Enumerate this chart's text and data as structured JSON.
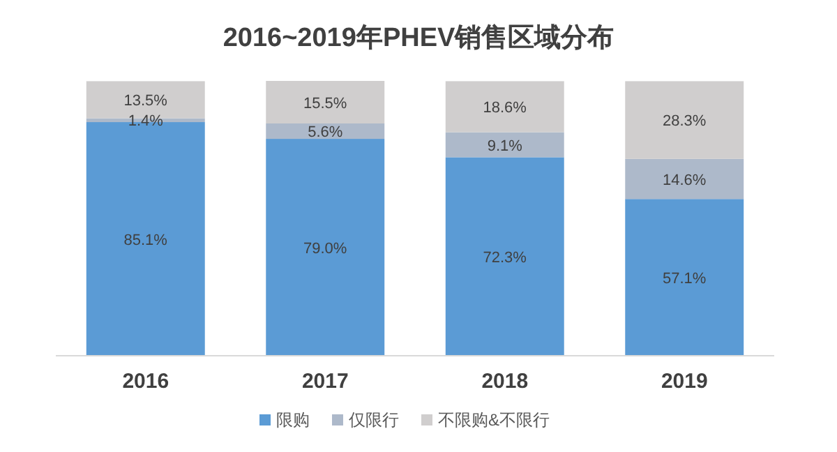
{
  "chart_data": {
    "type": "bar",
    "title": "2016~2019年PHEV销售区域分布",
    "categories": [
      "2016",
      "2017",
      "2018",
      "2019"
    ],
    "stacked": true,
    "data_labels": true,
    "legend": "bottom",
    "series": [
      {
        "name": "限购",
        "color": "#5b9bd5",
        "values": [
          85.1,
          79.0,
          72.3,
          57.1
        ],
        "value_labels": [
          "85.1%",
          "79.0%",
          "72.3%",
          "57.1%"
        ]
      },
      {
        "name": "仅限行",
        "color": "#adb9ca",
        "values": [
          1.4,
          5.6,
          9.1,
          14.6
        ],
        "value_labels": [
          "1.4%",
          "5.6%",
          "9.1%",
          "14.6%"
        ]
      },
      {
        "name": "不限购&不限行",
        "color": "#d0cece",
        "values": [
          13.5,
          15.5,
          18.6,
          28.3
        ],
        "value_labels": [
          "13.5%",
          "15.5%",
          "18.6%",
          "28.3%"
        ]
      }
    ]
  }
}
